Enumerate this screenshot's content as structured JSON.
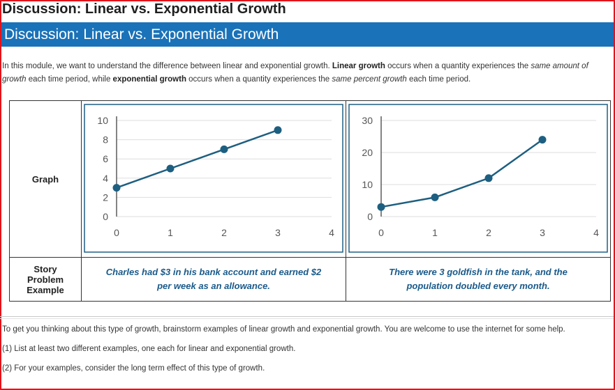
{
  "page": {
    "title": "Discussion: Linear vs. Exponential Growth",
    "banner": "Discussion: Linear vs. Exponential Growth"
  },
  "intro": {
    "p1_a": "In this module, we want to understand the difference between linear and exponential growth.  ",
    "p1_linear": "Linear growth",
    "p1_b": " occurs when a quantity experiences the ",
    "p1_same_amount": "same amount of growth",
    "p1_c": " each time period, while ",
    "p1_exponential": "exponential growth",
    "p1_d": " occurs when a quantity experiences the ",
    "p1_same_percent": "same percent growth",
    "p1_e": " each time period."
  },
  "table": {
    "graph_label": "Graph",
    "story_label_1": "Story",
    "story_label_2": "Problem",
    "story_label_3": "Example",
    "linear_story_1": "Charles had $3 in his bank account and earned $2",
    "linear_story_2": "per week as an allowance.",
    "exp_story_1": "There were 3 goldfish in the tank, and the",
    "exp_story_2": "population doubled every month."
  },
  "chart_data": [
    {
      "type": "line",
      "title": "",
      "xlabel": "",
      "ylabel": "",
      "x": [
        0,
        1,
        2,
        3
      ],
      "values": [
        3,
        5,
        7,
        9
      ],
      "xlim": [
        0,
        4
      ],
      "ylim": [
        0,
        10
      ],
      "xticks": [
        "0",
        "1",
        "2",
        "3",
        "4"
      ],
      "yticks": [
        "0",
        "2",
        "4",
        "6",
        "8",
        "10"
      ],
      "grid": true,
      "color": "#1d5f80"
    },
    {
      "type": "line",
      "title": "",
      "xlabel": "",
      "ylabel": "",
      "x": [
        0,
        1,
        2,
        3
      ],
      "values": [
        3,
        6,
        12,
        24
      ],
      "xlim": [
        0,
        4
      ],
      "ylim": [
        0,
        30
      ],
      "xticks": [
        "0",
        "1",
        "2",
        "3",
        "4"
      ],
      "yticks": [
        "0",
        "10",
        "20",
        "30"
      ],
      "grid": true,
      "color": "#1d5f80"
    }
  ],
  "bottom": {
    "p1": "To get you thinking about this type of growth, brainstorm examples of linear growth and exponential growth.  You are welcome to use the internet for some help.",
    "p2": "(1) List at least two different examples, one each for linear and exponential growth.",
    "p3": "(2) For your examples, consider the long term effect of this type of growth."
  }
}
